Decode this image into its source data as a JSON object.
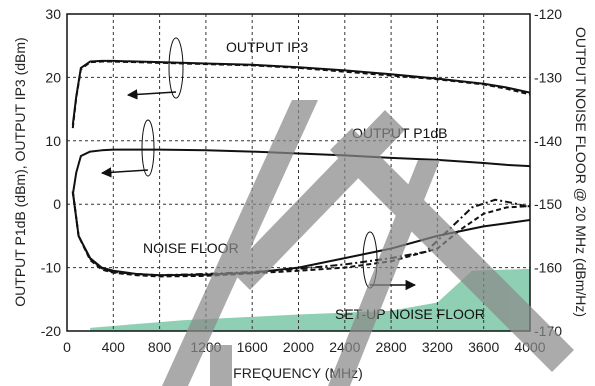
{
  "chart_data": {
    "type": "line",
    "xlabel": "FREQUENCY (MHz)",
    "ylabel_left": "OUTPUT P1dB (dBm), OUTPUT IP3 (dBm)",
    "ylabel_right": "OUTPUT NOISE FLOOR @ 20 MHz (dBm/Hz)",
    "xlim": [
      0,
      4000
    ],
    "ylim_left": [
      -20,
      30
    ],
    "ylim_right": [
      -170,
      -120
    ],
    "x_ticks": [
      "0",
      "400",
      "800",
      "1200",
      "1600",
      "2000",
      "2400",
      "2800",
      "3200",
      "3600",
      "4000"
    ],
    "y_ticks_left": [
      "-20",
      "-10",
      "0",
      "10",
      "20",
      "30"
    ],
    "y_ticks_right": [
      "-170",
      "-160",
      "-150",
      "-140",
      "-130",
      "-120"
    ],
    "grid": true,
    "grid_style": "dashed",
    "annotations": {
      "ip3": "OUTPUT IP3",
      "p1db": "OUTPUT P1dB",
      "noise": "NOISE FLOOR",
      "setup": "SET-UP NOISE FLOOR"
    },
    "colors": {
      "line": "#111111",
      "grid": "#333333",
      "setup_fill": "#8fcfb3",
      "watermark": "#8a8a8a"
    },
    "series": [
      {
        "axis": "left",
        "style": "solid",
        "x": [
          50,
          80,
          120,
          200,
          300,
          400,
          800,
          1200,
          1600,
          2000,
          2400,
          2800,
          3200,
          3600,
          3800,
          4000
        ],
        "y": [
          12.5,
          17,
          21.5,
          22.5,
          22.6,
          22.6,
          22.4,
          22.2,
          22.0,
          21.6,
          21.1,
          20.5,
          19.8,
          19.0,
          18.4,
          17.6
        ]
      },
      {
        "axis": "left",
        "style": "dashed",
        "x": [
          50,
          80,
          120,
          200,
          300,
          400,
          800,
          1200,
          1600,
          2000,
          2400,
          2800,
          3200,
          3600,
          3800,
          4000
        ],
        "y": [
          12,
          16.8,
          21.3,
          22.4,
          22.5,
          22.5,
          22.3,
          22.1,
          21.9,
          21.5,
          20.9,
          20.3,
          19.7,
          18.9,
          18.2,
          17.3
        ]
      },
      {
        "axis": "left",
        "style": "solid",
        "x": [
          50,
          80,
          120,
          200,
          300,
          400,
          800,
          1200,
          1600,
          2000,
          2400,
          2800,
          3200,
          3600,
          3800,
          4000
        ],
        "y": [
          1.5,
          5,
          7.6,
          8.3,
          8.5,
          8.6,
          8.6,
          8.5,
          8.3,
          8.0,
          7.7,
          7.3,
          7.0,
          6.5,
          6.2,
          6.0
        ]
      },
      {
        "axis": "right",
        "style": "solid",
        "x": [
          50,
          100,
          200,
          300,
          400,
          600,
          800,
          1200,
          1600,
          2000,
          2400,
          2800,
          3200,
          3600,
          3800,
          4000
        ],
        "y": [
          -148,
          -155,
          -158.5,
          -160,
          -160.5,
          -161,
          -161.2,
          -161.1,
          -160.8,
          -160,
          -158.5,
          -157,
          -155,
          -153.5,
          -153,
          -152.5
        ]
      },
      {
        "axis": "right",
        "style": "dashed",
        "x": [
          50,
          100,
          200,
          300,
          400,
          600,
          800,
          1200,
          1600,
          2000,
          2400,
          2800,
          3200,
          3400,
          3600,
          3800,
          4000
        ],
        "y": [
          -148,
          -155,
          -158.8,
          -160.3,
          -160.8,
          -161.2,
          -161.4,
          -161.3,
          -160.9,
          -160.5,
          -160,
          -159,
          -157,
          -154,
          -151.5,
          -150.5,
          -150.3
        ]
      },
      {
        "axis": "right",
        "style": "dashdot",
        "x": [
          50,
          100,
          200,
          300,
          400,
          600,
          800,
          1200,
          1600,
          2000,
          2400,
          2800,
          3100,
          3300,
          3500,
          3700,
          3850,
          4000
        ],
        "y": [
          -148,
          -155,
          -158.6,
          -160.1,
          -160.7,
          -161,
          -161.2,
          -161,
          -160.7,
          -160.2,
          -159.5,
          -158.5,
          -157.5,
          -154,
          -150.5,
          -149.3,
          -149.8,
          -150.5
        ]
      }
    ],
    "setup_noise_floor": {
      "axis": "right",
      "x": [
        200,
        1000,
        2000,
        2800,
        3200,
        3500,
        4000
      ],
      "y": [
        -169.5,
        -168.3,
        -167.4,
        -166.8,
        -165.5,
        -160.5,
        -160.2
      ]
    }
  }
}
